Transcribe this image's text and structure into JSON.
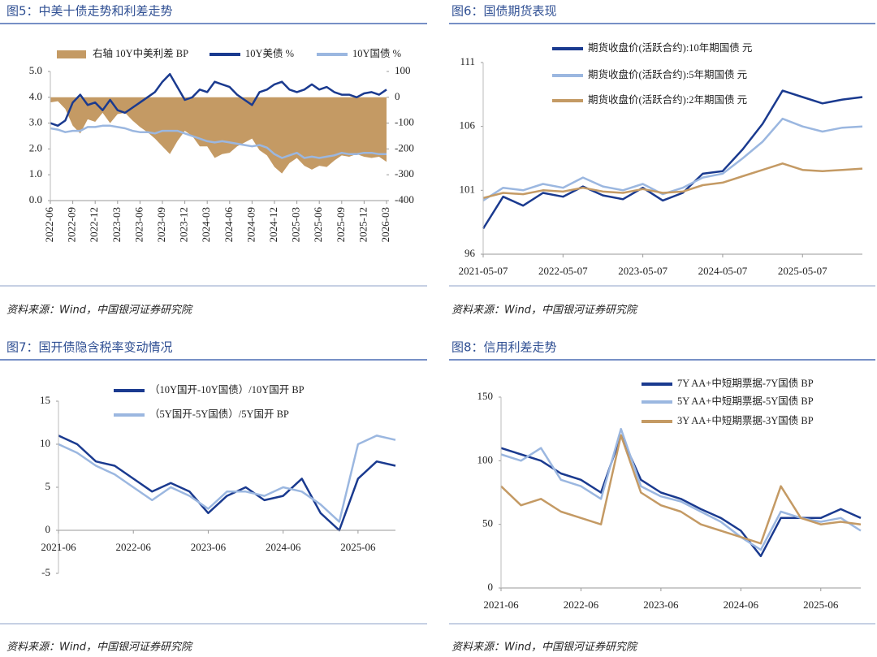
{
  "chart_data": [
    {
      "type": "line",
      "title": "图5：中美十债走势和利差走势",
      "source": "资料来源：Wind，中国银河证券研究院",
      "x": [
        "2022-06",
        "2022-07",
        "2022-08",
        "2022-09",
        "2022-10",
        "2022-11",
        "2022-12",
        "2023-01",
        "2023-02",
        "2023-03",
        "2023-04",
        "2023-05",
        "2023-06",
        "2023-07",
        "2023-08",
        "2023-09",
        "2023-10",
        "2023-11",
        "2023-12",
        "2024-01",
        "2024-02",
        "2024-03",
        "2024-04",
        "2024-05",
        "2024-06",
        "2024-07",
        "2024-08",
        "2024-09",
        "2024-10",
        "2024-11",
        "2024-12",
        "2025-01",
        "2025-02",
        "2025-03",
        "2025-04",
        "2025-05",
        "2025-06",
        "2025-07",
        "2025-08",
        "2025-09",
        "2025-10",
        "2025-11",
        "2025-12",
        "2026-01",
        "2026-02",
        "2026-03"
      ],
      "xticks": [
        "2022-06",
        "2022-09",
        "2022-12",
        "2023-03",
        "2023-06",
        "2023-09",
        "2023-12",
        "2024-03",
        "2024-06",
        "2024-09",
        "2024-12",
        "2025-03",
        "2025-06",
        "2025-09",
        "2025-12",
        "2026-03"
      ],
      "ylim": [
        0,
        5
      ],
      "yticks": [
        {
          "value": 0,
          "label": "0.0"
        },
        {
          "value": 1,
          "label": "1.0"
        },
        {
          "value": 2,
          "label": "2.0"
        },
        {
          "value": 3,
          "label": "3.0"
        },
        {
          "value": 4,
          "label": "4.0"
        },
        {
          "value": 5,
          "label": "5.0"
        }
      ],
      "y2lim": [
        -400,
        100
      ],
      "y2ticks": [
        -400,
        -300,
        -200,
        -100,
        0,
        100
      ],
      "series": [
        {
          "name": "右轴 10Y中美利差 BP",
          "type": "area",
          "axis": "y2",
          "color": "#c49a64",
          "values": [
            -20,
            -15,
            -45,
            -110,
            -140,
            -85,
            -95,
            -60,
            -100,
            -65,
            -60,
            -90,
            -115,
            -135,
            -160,
            -190,
            -220,
            -170,
            -130,
            -150,
            -190,
            -190,
            -235,
            -220,
            -215,
            -190,
            -175,
            -160,
            -205,
            -225,
            -270,
            -295,
            -255,
            -235,
            -265,
            -280,
            -265,
            -270,
            -245,
            -225,
            -230,
            -220,
            -230,
            -235,
            -230,
            -250
          ]
        },
        {
          "name": "10Y美债 %",
          "color": "#1a3a8f",
          "values": [
            3.0,
            2.9,
            3.1,
            3.8,
            4.1,
            3.7,
            3.8,
            3.5,
            3.9,
            3.5,
            3.4,
            3.6,
            3.8,
            4.0,
            4.2,
            4.6,
            4.9,
            4.4,
            3.9,
            4.0,
            4.3,
            4.2,
            4.6,
            4.5,
            4.4,
            4.1,
            3.9,
            3.7,
            4.2,
            4.3,
            4.5,
            4.6,
            4.3,
            4.2,
            4.3,
            4.5,
            4.3,
            4.4,
            4.2,
            4.1,
            4.1,
            4.0,
            4.15,
            4.2,
            4.1,
            4.3
          ]
        },
        {
          "name": "10Y国债 %",
          "color": "#9bb7e0",
          "values": [
            2.8,
            2.75,
            2.65,
            2.7,
            2.7,
            2.85,
            2.85,
            2.9,
            2.9,
            2.85,
            2.8,
            2.7,
            2.65,
            2.65,
            2.6,
            2.7,
            2.7,
            2.7,
            2.6,
            2.5,
            2.4,
            2.3,
            2.25,
            2.3,
            2.25,
            2.2,
            2.15,
            2.1,
            2.15,
            2.05,
            1.8,
            1.65,
            1.75,
            1.85,
            1.65,
            1.7,
            1.65,
            1.7,
            1.75,
            1.85,
            1.8,
            1.8,
            1.85,
            1.85,
            1.8,
            1.8
          ]
        }
      ]
    },
    {
      "type": "line",
      "title": "图6：国债期货表现",
      "source": "资料来源：Wind，中国银河证券研究院",
      "x": [
        "2021-05-07",
        "2021-08-07",
        "2021-11-07",
        "2022-02-07",
        "2022-05-07",
        "2022-08-07",
        "2022-11-07",
        "2023-02-07",
        "2023-05-07",
        "2023-08-07",
        "2023-11-07",
        "2024-02-07",
        "2024-05-07",
        "2024-08-07",
        "2024-11-07",
        "2025-02-07",
        "2025-05-07",
        "2025-08-07",
        "2025-11-07",
        "2026-02-07"
      ],
      "xticks": [
        "2021-05-07",
        "2022-05-07",
        "2023-05-07",
        "2024-05-07",
        "2025-05-07"
      ],
      "ylim": [
        96,
        111
      ],
      "yticks": [
        96,
        101,
        106,
        111
      ],
      "series": [
        {
          "name": "期货收盘价(活跃合约):10年期国债  元",
          "color": "#1a3a8f",
          "values": [
            98.0,
            100.5,
            99.8,
            100.8,
            100.5,
            101.3,
            100.6,
            100.3,
            101.2,
            100.2,
            100.8,
            102.3,
            102.5,
            104.2,
            106.2,
            108.8,
            108.3,
            107.8,
            108.1,
            108.3
          ]
        },
        {
          "name": "期货收盘价(活跃合约):5年期国债  元",
          "color": "#9bb7e0",
          "values": [
            100.2,
            101.2,
            101.0,
            101.5,
            101.2,
            102.0,
            101.3,
            101.0,
            101.5,
            100.7,
            101.2,
            102.0,
            102.3,
            103.5,
            104.8,
            106.6,
            106.0,
            105.6,
            105.9,
            106.0
          ]
        },
        {
          "name": "期货收盘价(活跃合约):2年期国债  元",
          "color": "#c49a64",
          "values": [
            100.4,
            100.8,
            100.7,
            101.0,
            100.9,
            101.2,
            100.9,
            100.8,
            101.1,
            100.8,
            100.9,
            101.4,
            101.6,
            102.1,
            102.6,
            103.1,
            102.6,
            102.5,
            102.6,
            102.7
          ]
        }
      ]
    },
    {
      "type": "line",
      "title": "图7：国开债隐含税率变动情况",
      "source": "资料来源：Wind，中国银河证券研究院",
      "x": [
        "2021-06",
        "2021-09",
        "2021-12",
        "2022-03",
        "2022-06",
        "2022-09",
        "2022-12",
        "2023-03",
        "2023-06",
        "2023-09",
        "2023-12",
        "2024-03",
        "2024-06",
        "2024-09",
        "2024-12",
        "2025-03",
        "2025-06",
        "2025-09",
        "2025-12"
      ],
      "xticks": [
        "2021-06",
        "2022-06",
        "2023-06",
        "2024-06",
        "2025-06"
      ],
      "ylim": [
        -5,
        15
      ],
      "yticks": [
        -5,
        0,
        5,
        10,
        15
      ],
      "series": [
        {
          "name": "（10Y国开-10Y国债）/10Y国开 BP",
          "color": "#1a3a8f",
          "values": [
            11,
            10,
            8,
            7.5,
            6,
            4.5,
            5.5,
            4.5,
            2,
            4,
            5,
            3.5,
            4,
            6,
            2,
            0,
            6,
            8,
            7.5
          ]
        },
        {
          "name": "（5Y国开-5Y国债）/5Y国开 BP",
          "color": "#9bb7e0",
          "values": [
            10,
            9,
            7.5,
            6.5,
            5,
            3.5,
            5,
            4,
            2.5,
            4.5,
            4.5,
            4,
            5,
            4.5,
            3,
            1,
            10,
            11,
            10.5
          ]
        }
      ]
    },
    {
      "type": "line",
      "title": "图8：信用利差走势",
      "source": "资料来源：Wind，中国银河证券研究院",
      "x": [
        "2021-06",
        "2021-09",
        "2021-12",
        "2022-03",
        "2022-06",
        "2022-09",
        "2022-12",
        "2023-03",
        "2023-06",
        "2023-09",
        "2023-12",
        "2024-03",
        "2024-06",
        "2024-09",
        "2024-12",
        "2025-03",
        "2025-06",
        "2025-09",
        "2025-12"
      ],
      "xticks": [
        "2021-06",
        "2022-06",
        "2023-06",
        "2024-06",
        "2025-06"
      ],
      "ylim": [
        0,
        150
      ],
      "yticks": [
        0,
        50,
        100,
        150
      ],
      "series": [
        {
          "name": "7Y AA+中短期票据-7Y国债 BP",
          "color": "#1a3a8f",
          "values": [
            110,
            105,
            100,
            90,
            85,
            75,
            120,
            85,
            75,
            70,
            62,
            55,
            45,
            25,
            55,
            55,
            55,
            62,
            55
          ]
        },
        {
          "name": "5Y AA+中短期票据-5Y国债 BP",
          "color": "#9bb7e0",
          "values": [
            105,
            100,
            110,
            85,
            80,
            70,
            125,
            80,
            72,
            68,
            60,
            52,
            40,
            30,
            60,
            55,
            52,
            55,
            45
          ]
        },
        {
          "name": "3Y AA+中短期票据-3Y国债 BP",
          "color": "#c49a64",
          "values": [
            80,
            65,
            70,
            60,
            55,
            50,
            120,
            75,
            65,
            60,
            50,
            45,
            40,
            35,
            80,
            55,
            50,
            52,
            50
          ]
        }
      ]
    }
  ]
}
